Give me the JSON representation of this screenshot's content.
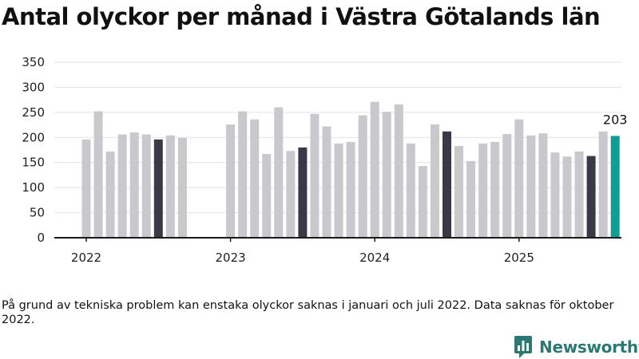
{
  "chart_data": {
    "type": "bar",
    "title": "Antal olyckor per månad i Västra Götalands län",
    "xlabel": "",
    "ylabel": "",
    "ylim": [
      0,
      350
    ],
    "yticks": [
      0,
      50,
      100,
      150,
      200,
      250,
      300,
      350
    ],
    "grid": true,
    "years": [
      {
        "label": "2022",
        "months": [
          196,
          252,
          172,
          206,
          210,
          206,
          196,
          204,
          199,
          null,
          null,
          null
        ]
      },
      {
        "label": "2023",
        "months": [
          226,
          252,
          236,
          167,
          260,
          173,
          180,
          247,
          222,
          188,
          191,
          244
        ]
      },
      {
        "label": "2024",
        "months": [
          271,
          251,
          266,
          188,
          143,
          226,
          212,
          183,
          153,
          188,
          191,
          207
        ]
      },
      {
        "label": "2025",
        "months": [
          236,
          204,
          208,
          170,
          162,
          172,
          163,
          212,
          203
        ]
      }
    ],
    "last_value_label": "203",
    "colors": {
      "default": "#c8c8cd",
      "highlight": "#3a3a46",
      "latest": "#0f9e93",
      "grid": "#e3e3e3",
      "axis": "#1a1a1a"
    }
  },
  "footnote": "På grund av tekniska problem kan enstaka olyckor saknas i januari och juli 2022. Data saknas för oktober 2022.",
  "brand": {
    "name": "Newsworthy",
    "icon": "newsworthy-logo-icon"
  }
}
